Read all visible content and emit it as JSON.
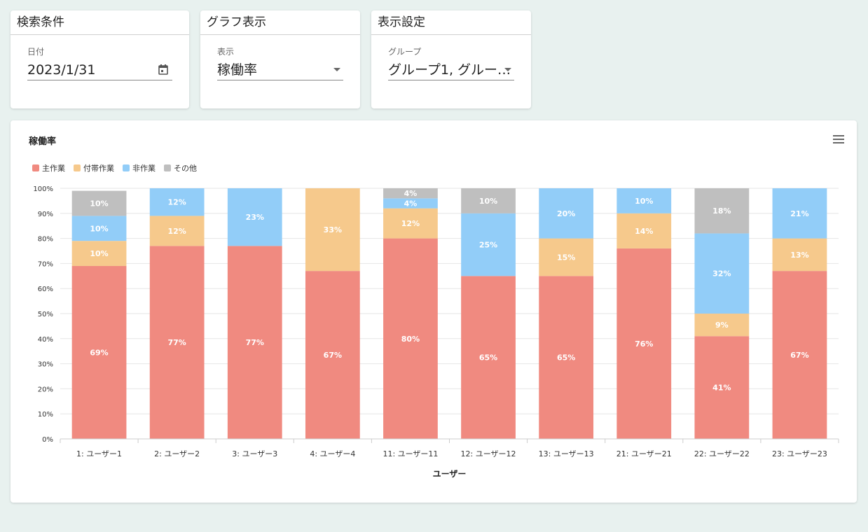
{
  "search_card": {
    "title": "検索条件",
    "date_label": "日付",
    "date_value": "2023/1/31"
  },
  "graph_card": {
    "title": "グラフ表示",
    "display_label": "表示",
    "display_value": "稼働率"
  },
  "settings_card": {
    "title": "表示設定",
    "group_label": "グループ",
    "group_value": "グループ1, グルー…"
  },
  "chart": {
    "title": "稼働率"
  },
  "chart_data": {
    "type": "bar",
    "stacked": true,
    "title": "稼働率",
    "xlabel": "ユーザー",
    "ylabel": "",
    "ylim": [
      0,
      100
    ],
    "yticks": [
      "0%",
      "10%",
      "20%",
      "30%",
      "40%",
      "50%",
      "60%",
      "70%",
      "80%",
      "90%",
      "100%"
    ],
    "grid": true,
    "legend_position": "top-left",
    "categories": [
      "1: ユーザー1",
      "2: ユーザー2",
      "3: ユーザー3",
      "4: ユーザー4",
      "11: ユーザー11",
      "12: ユーザー12",
      "13: ユーザー13",
      "21: ユーザー21",
      "22: ユーザー22",
      "23: ユーザー23"
    ],
    "series": [
      {
        "name": "主作業",
        "color": "#f08a80",
        "values": [
          69,
          77,
          77,
          67,
          80,
          65,
          65,
          76,
          41,
          67
        ]
      },
      {
        "name": "付帯作業",
        "color": "#f6c98c",
        "values": [
          10,
          12,
          0,
          33,
          12,
          0,
          15,
          14,
          9,
          13
        ]
      },
      {
        "name": "非作業",
        "color": "#92cdf8",
        "values": [
          10,
          12,
          23,
          0,
          4,
          25,
          20,
          10,
          32,
          21
        ]
      },
      {
        "name": "その他",
        "color": "#bfbfbf",
        "values": [
          10,
          0,
          0,
          0,
          4,
          10,
          0,
          0,
          18,
          0
        ]
      }
    ]
  }
}
